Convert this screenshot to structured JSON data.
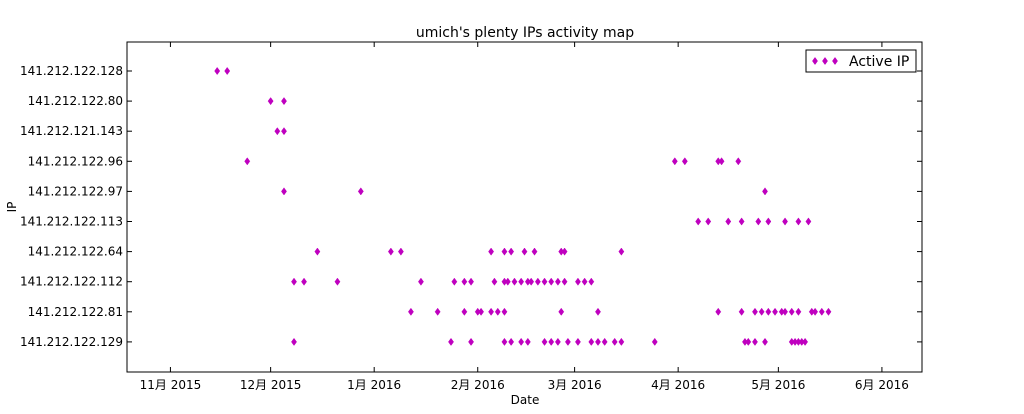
{
  "chart_data": {
    "type": "scatter",
    "title": "umich's plenty IPs activity map",
    "xlabel": "Date",
    "ylabel": "IP",
    "x_type": "date",
    "xlim": [
      "2015-10-19",
      "2016-06-13"
    ],
    "x_ticks": [
      {
        "date": "2015-11-01",
        "label": "11月 2015"
      },
      {
        "date": "2015-12-01",
        "label": "12月 2015"
      },
      {
        "date": "2016-01-01",
        "label": "1月 2016"
      },
      {
        "date": "2016-02-01",
        "label": "2月 2016"
      },
      {
        "date": "2016-03-01",
        "label": "3月 2016"
      },
      {
        "date": "2016-04-01",
        "label": "4月 2016"
      },
      {
        "date": "2016-05-01",
        "label": "5月 2016"
      },
      {
        "date": "2016-06-01",
        "label": "6月 2016"
      }
    ],
    "categories": [
      "141.212.122.128",
      "141.212.122.80",
      "141.212.121.143",
      "141.212.122.96",
      "141.212.122.97",
      "141.212.122.113",
      "141.212.122.64",
      "141.212.122.112",
      "141.212.122.81",
      "141.212.122.129"
    ],
    "grid": false,
    "legend": {
      "position": "top-right",
      "label": "Active IP"
    },
    "marker": "thin-diamond",
    "color": "#bf00bf",
    "series": [
      {
        "name": "Active IP",
        "points": [
          {
            "ip": "141.212.122.128",
            "dates": [
              "2015-11-15",
              "2015-11-18"
            ]
          },
          {
            "ip": "141.212.122.80",
            "dates": [
              "2015-12-01",
              "2015-12-05"
            ]
          },
          {
            "ip": "141.212.121.143",
            "dates": [
              "2015-12-03",
              "2015-12-05"
            ]
          },
          {
            "ip": "141.212.122.96",
            "dates": [
              "2015-11-24",
              "2016-03-31",
              "2016-04-03",
              "2016-04-13",
              "2016-04-14",
              "2016-04-19"
            ]
          },
          {
            "ip": "141.212.122.97",
            "dates": [
              "2015-12-05",
              "2015-12-28",
              "2016-04-27"
            ]
          },
          {
            "ip": "141.212.122.113",
            "dates": [
              "2016-04-07",
              "2016-04-10",
              "2016-04-16",
              "2016-04-20",
              "2016-04-25",
              "2016-04-28",
              "2016-05-03",
              "2016-05-07",
              "2016-05-10"
            ]
          },
          {
            "ip": "141.212.122.64",
            "dates": [
              "2015-12-15",
              "2016-01-06",
              "2016-01-09",
              "2016-02-05",
              "2016-02-09",
              "2016-02-11",
              "2016-02-15",
              "2016-02-18",
              "2016-02-26",
              "2016-02-27",
              "2016-03-15"
            ]
          },
          {
            "ip": "141.212.122.112",
            "dates": [
              "2015-12-08",
              "2015-12-11",
              "2015-12-21",
              "2016-01-15",
              "2016-01-25",
              "2016-01-28",
              "2016-01-30",
              "2016-02-06",
              "2016-02-09",
              "2016-02-10",
              "2016-02-12",
              "2016-02-14",
              "2016-02-16",
              "2016-02-17",
              "2016-02-19",
              "2016-02-21",
              "2016-02-23",
              "2016-02-25",
              "2016-02-27",
              "2016-03-02",
              "2016-03-04",
              "2016-03-06"
            ]
          },
          {
            "ip": "141.212.122.81",
            "dates": [
              "2016-01-12",
              "2016-01-20",
              "2016-01-28",
              "2016-02-01",
              "2016-02-02",
              "2016-02-05",
              "2016-02-07",
              "2016-02-09",
              "2016-02-26",
              "2016-03-08",
              "2016-04-13",
              "2016-04-20",
              "2016-04-24",
              "2016-04-26",
              "2016-04-28",
              "2016-04-30",
              "2016-05-02",
              "2016-05-03",
              "2016-05-05",
              "2016-05-07",
              "2016-05-11",
              "2016-05-12",
              "2016-05-14",
              "2016-05-16"
            ]
          },
          {
            "ip": "141.212.122.129",
            "dates": [
              "2015-12-08",
              "2016-01-24",
              "2016-01-30",
              "2016-02-09",
              "2016-02-11",
              "2016-02-14",
              "2016-02-16",
              "2016-02-21",
              "2016-02-23",
              "2016-02-25",
              "2016-02-28",
              "2016-03-02",
              "2016-03-06",
              "2016-03-08",
              "2016-03-10",
              "2016-03-13",
              "2016-03-15",
              "2016-03-25",
              "2016-04-21",
              "2016-04-22",
              "2016-04-24",
              "2016-04-27",
              "2016-05-05",
              "2016-05-06",
              "2016-05-07",
              "2016-05-08",
              "2016-05-09"
            ]
          }
        ]
      }
    ]
  }
}
